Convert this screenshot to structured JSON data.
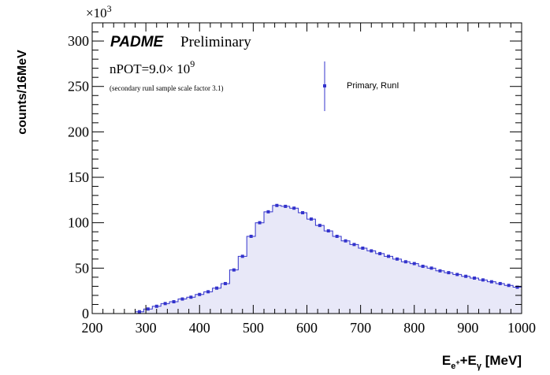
{
  "chart_data": {
    "type": "histogram",
    "title_brand": "PADME",
    "title_status": "Preliminary",
    "npot_text": "nPOT=9.0",
    "npot_times": "× 10",
    "npot_exp": "9",
    "note": "(secondary runI sample scale factor 3.1)",
    "ylabel": "counts/16MeV",
    "xlabel_main": "E",
    "xlabel_sub1": "e",
    "xlabel_sub1_sup": "+",
    "xlabel_plus": "+E",
    "xlabel_sub2": "γ",
    "xlabel_unit": " [MeV]",
    "y_multiplier_base": "×10",
    "y_multiplier_exp": "3",
    "xlim": [
      200,
      1000
    ],
    "ylim": [
      0,
      320
    ],
    "x_ticks": [
      "200",
      "300",
      "400",
      "500",
      "600",
      "700",
      "800",
      "900",
      "1000"
    ],
    "y_ticks": [
      "0",
      "50",
      "100",
      "150",
      "200",
      "250",
      "300"
    ],
    "legend": [
      "Primary, RunI"
    ],
    "bin_width": 16,
    "bin_start": 200,
    "series": [
      {
        "name": "Primary, RunI",
        "color": "#3333cc",
        "fill": "#e8e8f8",
        "values": [
          0,
          0,
          0,
          0,
          0,
          2,
          5,
          8,
          11,
          13,
          16,
          18,
          21,
          24,
          28,
          33,
          48,
          63,
          85,
          100,
          112,
          119,
          118,
          116,
          111,
          104,
          97,
          91,
          85,
          80,
          76,
          72,
          69,
          66,
          63,
          60,
          57,
          55,
          52,
          50,
          47,
          45,
          43,
          41,
          39,
          37,
          35,
          33,
          31,
          29
        ]
      }
    ]
  }
}
